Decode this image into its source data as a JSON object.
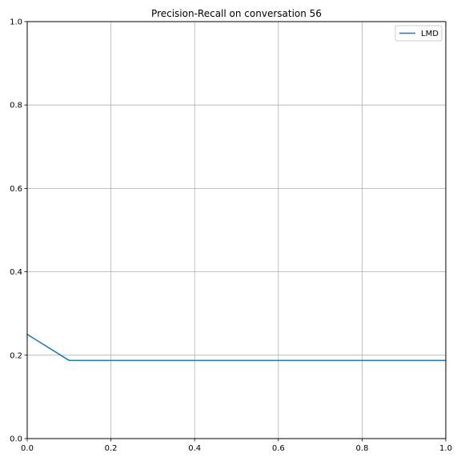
{
  "chart_data": {
    "type": "line",
    "title": "Precision-Recall on conversation 56",
    "xlabel": "",
    "ylabel": "",
    "xlim": [
      0,
      1
    ],
    "ylim": [
      0,
      1
    ],
    "grid": true,
    "legend_placement": "top-right",
    "x_ticks": [
      "0.0",
      "0.2",
      "0.4",
      "0.6",
      "0.8",
      "1.0"
    ],
    "y_ticks": [
      "0.0",
      "0.2",
      "0.4",
      "0.6",
      "0.8",
      "1.0"
    ],
    "series": [
      {
        "name": "LMD",
        "color": "#1f77b4",
        "x": [
          0.0,
          0.1,
          0.2,
          0.3,
          0.4,
          0.5,
          0.6,
          0.7,
          0.8,
          0.9,
          1.0
        ],
        "y": [
          0.25,
          0.1875,
          0.1875,
          0.1875,
          0.1875,
          0.1875,
          0.1875,
          0.1875,
          0.1875,
          0.1875,
          0.1875
        ]
      }
    ]
  }
}
